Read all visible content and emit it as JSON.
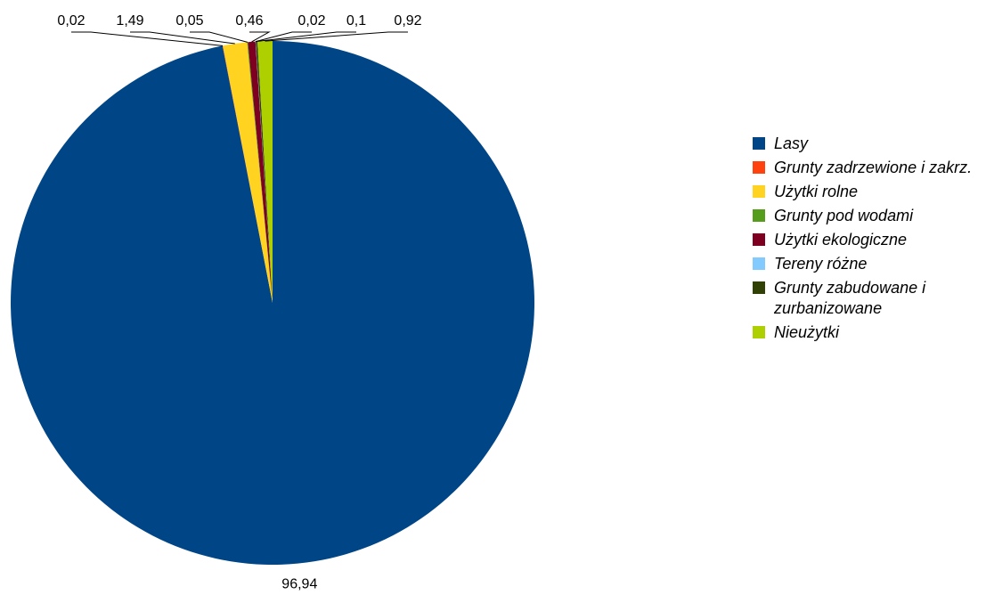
{
  "chart_data": {
    "type": "pie",
    "categories": [
      "Lasy",
      "Grunty zadrzewione i zakrz.",
      "Użytki rolne",
      "Grunty pod wodami",
      "Użytki ekologiczne",
      "Tereny różne",
      "Grunty zabudowane i zurbanizowane",
      "Nieużytki"
    ],
    "values": [
      96.94,
      0.02,
      1.49,
      0.05,
      0.46,
      0.02,
      0.1,
      0.92
    ],
    "value_labels": [
      "96,94",
      "0,02",
      "1,49",
      "0,05",
      "0,46",
      "0,02",
      "0,1",
      "0,92"
    ],
    "colors": [
      "#004586",
      "#ff420e",
      "#ffd320",
      "#579d1c",
      "#7e0021",
      "#83caff",
      "#314004",
      "#aecf00"
    ],
    "legend_placement": "right",
    "title": ""
  },
  "legend": {
    "items": [
      {
        "label": "Lasy",
        "color": "#004586"
      },
      {
        "label": "Grunty zadrzewione i zakrz.",
        "color": "#ff420e"
      },
      {
        "label": "Użytki rolne",
        "color": "#ffd320"
      },
      {
        "label": "Grunty pod wodami",
        "color": "#579d1c"
      },
      {
        "label": "Użytki ekologiczne",
        "color": "#7e0021"
      },
      {
        "label": "Tereny różne",
        "color": "#83caff"
      },
      {
        "label": "Grunty zabudowane i zurbanizowane",
        "color": "#314004"
      },
      {
        "label": "Nieużytki",
        "color": "#aecf00"
      }
    ]
  }
}
